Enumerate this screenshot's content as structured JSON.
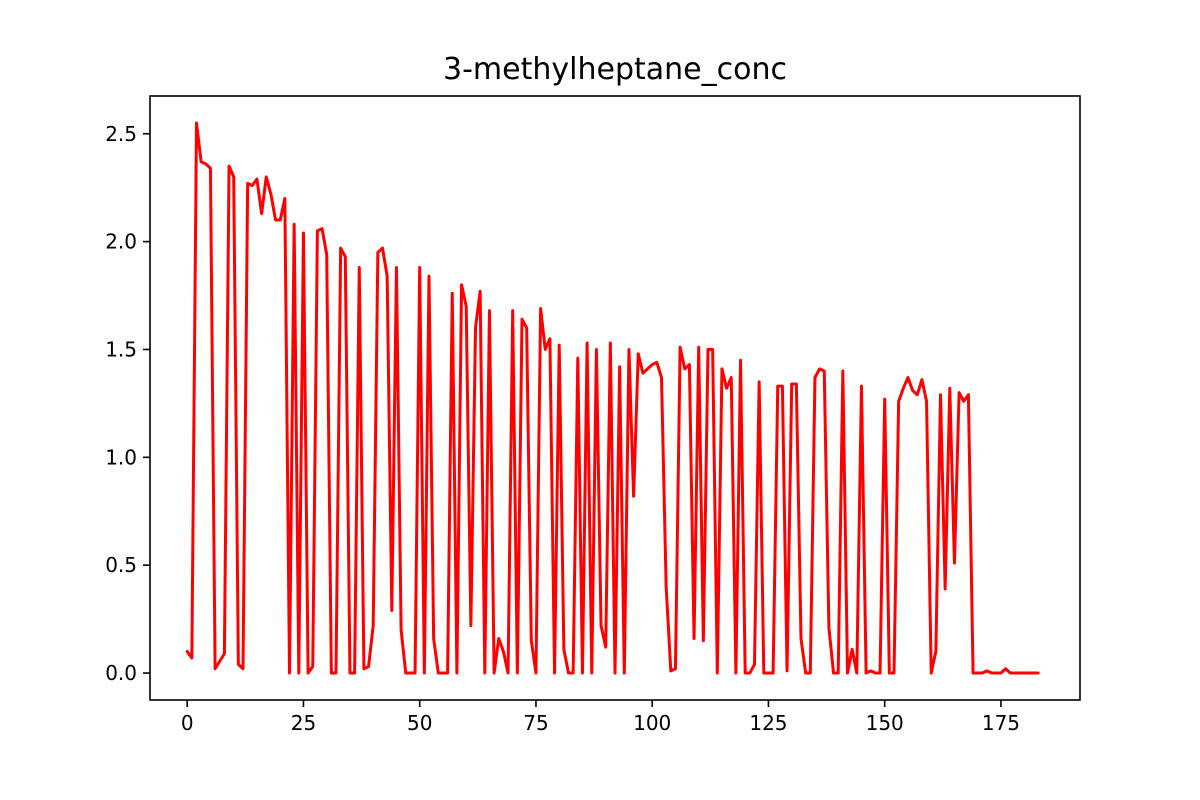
{
  "chart_data": {
    "type": "line",
    "title": "3-methylheptane_conc",
    "xlabel": "",
    "ylabel": "",
    "xlim": [
      -8,
      192
    ],
    "ylim": [
      -0.125,
      2.675
    ],
    "xticks": [
      {
        "value": 0,
        "label": "0"
      },
      {
        "value": 25,
        "label": "25"
      },
      {
        "value": 50,
        "label": "50"
      },
      {
        "value": 75,
        "label": "75"
      },
      {
        "value": 100,
        "label": "100"
      },
      {
        "value": 125,
        "label": "125"
      },
      {
        "value": 150,
        "label": "150"
      },
      {
        "value": 175,
        "label": "175"
      }
    ],
    "yticks": [
      {
        "value": 0.0,
        "label": "0.0"
      },
      {
        "value": 0.5,
        "label": "0.5"
      },
      {
        "value": 1.0,
        "label": "1.0"
      },
      {
        "value": 1.5,
        "label": "1.5"
      },
      {
        "value": 2.0,
        "label": "2.0"
      },
      {
        "value": 2.5,
        "label": "2.5"
      }
    ],
    "grid": false,
    "legend": "none",
    "color": "#ff0000",
    "series": [
      {
        "x": [
          0,
          1,
          2,
          3,
          4,
          5,
          6,
          8,
          9,
          10,
          11,
          12,
          13,
          14,
          15,
          16,
          17,
          18,
          19,
          20,
          21,
          22,
          23,
          24,
          25,
          26,
          27,
          28,
          29,
          30,
          31,
          32,
          33,
          34,
          35,
          36,
          37,
          38,
          39,
          40,
          41,
          42,
          43,
          44,
          45,
          46,
          47,
          48,
          49,
          50,
          51,
          52,
          53,
          54,
          55,
          56,
          57,
          58,
          59,
          60,
          61,
          62,
          63,
          64,
          65,
          66,
          67,
          68,
          69,
          70,
          71,
          72,
          73,
          74,
          75,
          76,
          77,
          78,
          79,
          80,
          81,
          82,
          83,
          84,
          85,
          86,
          87,
          88,
          89,
          90,
          91,
          92,
          93,
          94,
          95,
          96,
          97,
          98,
          99,
          100,
          101,
          102,
          103,
          104,
          105,
          106,
          107,
          108,
          109,
          110,
          111,
          112,
          113,
          114,
          115,
          116,
          117,
          118,
          119,
          120,
          121,
          122,
          123,
          124,
          125,
          126,
          127,
          128,
          129,
          130,
          131,
          132,
          133,
          134,
          135,
          136,
          137,
          138,
          139,
          140,
          141,
          142,
          143,
          144,
          145,
          146,
          147,
          148,
          149,
          150,
          151,
          152,
          153,
          154,
          155,
          156,
          157,
          158,
          159,
          160,
          161,
          162,
          163,
          164,
          165,
          166,
          167,
          168,
          169,
          170,
          171,
          172,
          173,
          174,
          175,
          176,
          177,
          178,
          179,
          180,
          181,
          182,
          183
        ],
        "y": [
          0.1,
          0.07,
          2.55,
          2.37,
          2.36,
          2.34,
          0.02,
          0.09,
          2.35,
          2.3,
          0.04,
          0.02,
          2.27,
          2.26,
          2.29,
          2.13,
          2.3,
          2.22,
          2.1,
          2.1,
          2.2,
          0.0,
          2.08,
          0.0,
          2.04,
          0.0,
          0.03,
          2.05,
          2.06,
          1.94,
          0.0,
          0.0,
          1.97,
          1.93,
          0.0,
          0.0,
          1.88,
          0.02,
          0.03,
          0.22,
          1.95,
          1.97,
          1.84,
          0.29,
          1.88,
          0.2,
          0.0,
          0.0,
          0.0,
          1.88,
          0.0,
          1.84,
          0.16,
          0.0,
          0.0,
          0.0,
          1.76,
          0.0,
          1.8,
          1.7,
          0.22,
          1.6,
          1.77,
          0.0,
          1.68,
          0.0,
          0.16,
          0.1,
          0.0,
          1.68,
          0.0,
          1.64,
          1.6,
          0.15,
          0.0,
          1.69,
          1.5,
          1.55,
          0.0,
          1.52,
          0.11,
          0.0,
          0.0,
          1.46,
          0.0,
          1.53,
          0.0,
          1.5,
          0.22,
          0.12,
          1.53,
          0.0,
          1.42,
          0.0,
          1.5,
          0.82,
          1.48,
          1.39,
          1.41,
          1.43,
          1.44,
          1.37,
          0.4,
          0.01,
          0.02,
          1.51,
          1.41,
          1.43,
          0.16,
          1.51,
          0.15,
          1.5,
          1.5,
          0.0,
          1.41,
          1.32,
          1.37,
          0.0,
          1.45,
          0.0,
          0.0,
          0.04,
          1.35,
          0.0,
          0.0,
          0.0,
          1.33,
          1.33,
          0.01,
          1.34,
          1.34,
          0.16,
          0.0,
          0.0,
          1.37,
          1.41,
          1.4,
          0.21,
          0.0,
          0.0,
          1.4,
          0.0,
          0.11,
          0.0,
          1.33,
          0.0,
          0.01,
          0.0,
          0.0,
          1.27,
          0.0,
          0.0,
          1.26,
          1.32,
          1.37,
          1.31,
          1.29,
          1.36,
          1.26,
          0.0,
          0.1,
          1.29,
          0.39,
          1.32,
          0.51,
          1.3,
          1.26,
          1.29,
          0.0,
          0.0,
          0.0,
          0.01,
          0.0,
          0.0,
          0.0,
          0.02,
          0.0,
          0.0,
          0.0,
          0.0,
          0.0,
          0.0,
          0.0
        ]
      }
    ]
  }
}
